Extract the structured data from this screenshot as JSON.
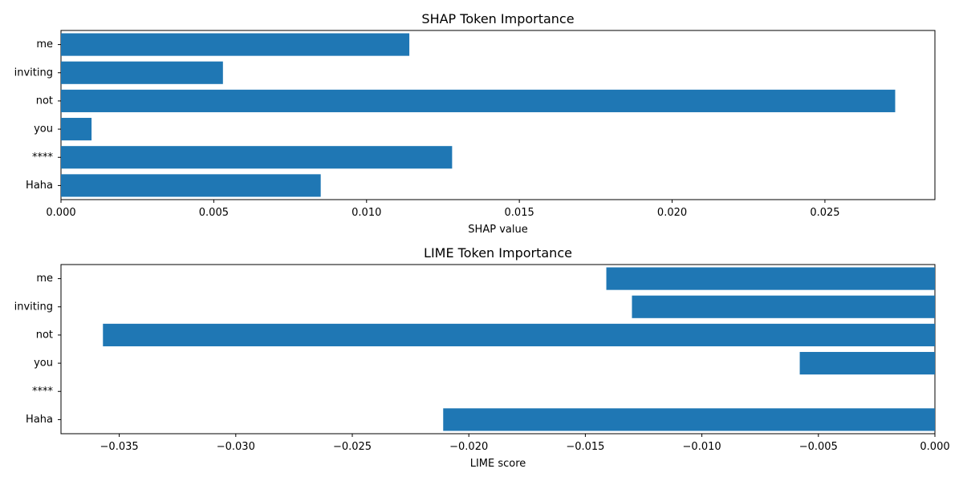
{
  "chart_data": [
    {
      "type": "bar",
      "orientation": "horizontal",
      "title": "SHAP Token Importance",
      "xlabel": "SHAP value",
      "ylabel": "",
      "categories": [
        "me",
        "inviting",
        "not",
        "you",
        "****",
        "Haha"
      ],
      "values": [
        0.0114,
        0.0053,
        0.0273,
        0.001,
        0.0128,
        0.0085
      ],
      "xlim": [
        0,
        0.0286
      ],
      "xticks": [
        0.0,
        0.005,
        0.01,
        0.015,
        0.02,
        0.025
      ],
      "xtick_labels": [
        "0.000",
        "0.005",
        "0.010",
        "0.015",
        "0.020",
        "0.025"
      ],
      "grid": false,
      "color": "#1f77b4"
    },
    {
      "type": "bar",
      "orientation": "horizontal",
      "title": "LIME Token Importance",
      "xlabel": "LIME score",
      "ylabel": "",
      "categories": [
        "me",
        "inviting",
        "not",
        "you",
        "****",
        "Haha"
      ],
      "values": [
        -0.0141,
        -0.013,
        -0.0357,
        -0.0058,
        0,
        -0.0211
      ],
      "xlim": [
        -0.0375,
        0
      ],
      "xticks": [
        -0.035,
        -0.03,
        -0.025,
        -0.02,
        -0.015,
        -0.01,
        -0.005,
        0.0
      ],
      "xtick_labels": [
        "−0.035",
        "−0.030",
        "−0.025",
        "−0.020",
        "−0.015",
        "−0.010",
        "−0.005",
        "0.000"
      ],
      "grid": false,
      "color": "#1f77b4"
    }
  ]
}
